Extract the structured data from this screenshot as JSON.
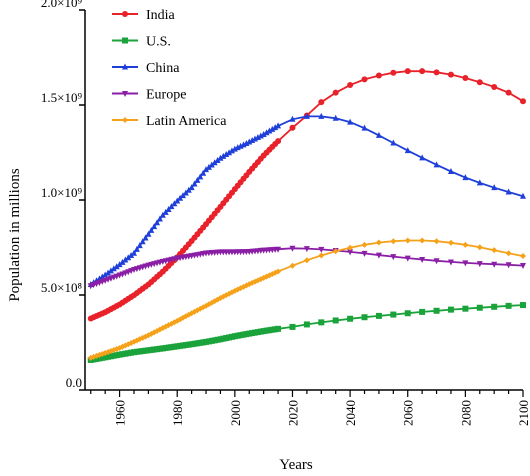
{
  "chart_data": {
    "type": "line",
    "title": "",
    "xlabel": "Years",
    "ylabel": "Population in millions",
    "xlim": [
      1948,
      2100
    ],
    "ylim": [
      0,
      2000000000
    ],
    "x_ticks": [
      1960,
      1980,
      2000,
      2020,
      2040,
      2060,
      2080,
      2100
    ],
    "x_tick_labels": [
      "1960",
      "1980",
      "2000",
      "2020",
      "2040",
      "2060",
      "2080",
      "2100"
    ],
    "y_ticks": [
      0,
      500000000,
      1000000000,
      1500000000,
      2000000000
    ],
    "y_tick_labels": [
      "0.0",
      "5.0×10⁸",
      "1.0×10⁹",
      "1.5×10⁹",
      "2.0×10⁹"
    ],
    "grid": false,
    "legend_position": "top-left",
    "series": [
      {
        "name": "India",
        "color": "#e8212a",
        "marker": "circle",
        "points": [
          [
            1950,
            376000000
          ],
          [
            1955,
            409000000
          ],
          [
            1960,
            450000000
          ],
          [
            1965,
            499000000
          ],
          [
            1970,
            555000000
          ],
          [
            1975,
            623000000
          ],
          [
            1980,
            699000000
          ],
          [
            1985,
            784000000
          ],
          [
            1990,
            873000000
          ],
          [
            1995,
            964000000
          ],
          [
            2000,
            1057000000
          ],
          [
            2005,
            1148000000
          ],
          [
            2010,
            1234000000
          ],
          [
            2015,
            1310000000
          ],
          [
            2020,
            1380000000
          ],
          [
            2025,
            1445000000
          ],
          [
            2030,
            1515000000
          ],
          [
            2035,
            1565000000
          ],
          [
            2040,
            1605000000
          ],
          [
            2045,
            1635000000
          ],
          [
            2050,
            1655000000
          ],
          [
            2055,
            1670000000
          ],
          [
            2060,
            1678000000
          ],
          [
            2065,
            1678000000
          ],
          [
            2070,
            1672000000
          ],
          [
            2075,
            1660000000
          ],
          [
            2080,
            1642000000
          ],
          [
            2085,
            1620000000
          ],
          [
            2090,
            1595000000
          ],
          [
            2095,
            1565000000
          ],
          [
            2100,
            1520000000
          ]
        ]
      },
      {
        "name": "U.S.",
        "color": "#1aa33a",
        "marker": "square",
        "points": [
          [
            1950,
            158000000
          ],
          [
            1955,
            172000000
          ],
          [
            1960,
            186000000
          ],
          [
            1965,
            199000000
          ],
          [
            1970,
            209000000
          ],
          [
            1975,
            219000000
          ],
          [
            1980,
            230000000
          ],
          [
            1985,
            241000000
          ],
          [
            1990,
            253000000
          ],
          [
            1995,
            267000000
          ],
          [
            2000,
            283000000
          ],
          [
            2005,
            297000000
          ],
          [
            2010,
            310000000
          ],
          [
            2015,
            322000000
          ],
          [
            2020,
            332000000
          ],
          [
            2025,
            345000000
          ],
          [
            2030,
            356000000
          ],
          [
            2035,
            366000000
          ],
          [
            2040,
            375000000
          ],
          [
            2045,
            383000000
          ],
          [
            2050,
            390000000
          ],
          [
            2055,
            397000000
          ],
          [
            2060,
            404000000
          ],
          [
            2065,
            411000000
          ],
          [
            2070,
            417000000
          ],
          [
            2075,
            423000000
          ],
          [
            2080,
            428000000
          ],
          [
            2085,
            433000000
          ],
          [
            2090,
            438000000
          ],
          [
            2095,
            443000000
          ],
          [
            2100,
            447000000
          ]
        ]
      },
      {
        "name": "China",
        "color": "#1f3fd9",
        "marker": "triangle",
        "points": [
          [
            1950,
            555000000
          ],
          [
            1955,
            605000000
          ],
          [
            1960,
            660000000
          ],
          [
            1965,
            720000000
          ],
          [
            1970,
            820000000
          ],
          [
            1975,
            920000000
          ],
          [
            1980,
            995000000
          ],
          [
            1985,
            1065000000
          ],
          [
            1990,
            1160000000
          ],
          [
            1995,
            1220000000
          ],
          [
            2000,
            1268000000
          ],
          [
            2005,
            1305000000
          ],
          [
            2010,
            1345000000
          ],
          [
            2015,
            1390000000
          ],
          [
            2020,
            1425000000
          ],
          [
            2025,
            1440000000
          ],
          [
            2030,
            1440000000
          ],
          [
            2035,
            1430000000
          ],
          [
            2040,
            1410000000
          ],
          [
            2045,
            1378000000
          ],
          [
            2050,
            1340000000
          ],
          [
            2055,
            1300000000
          ],
          [
            2060,
            1260000000
          ],
          [
            2065,
            1222000000
          ],
          [
            2070,
            1185000000
          ],
          [
            2075,
            1150000000
          ],
          [
            2080,
            1118000000
          ],
          [
            2085,
            1090000000
          ],
          [
            2090,
            1065000000
          ],
          [
            2095,
            1042000000
          ],
          [
            2100,
            1020000000
          ]
        ]
      },
      {
        "name": "Europe",
        "color": "#8a1fa6",
        "marker": "inverted-triangle",
        "points": [
          [
            1950,
            549000000
          ],
          [
            1955,
            577000000
          ],
          [
            1960,
            605000000
          ],
          [
            1965,
            634000000
          ],
          [
            1970,
            657000000
          ],
          [
            1975,
            677000000
          ],
          [
            1980,
            694000000
          ],
          [
            1985,
            707000000
          ],
          [
            1990,
            721000000
          ],
          [
            1995,
            727000000
          ],
          [
            2000,
            727000000
          ],
          [
            2005,
            729000000
          ],
          [
            2010,
            736000000
          ],
          [
            2015,
            741000000
          ],
          [
            2020,
            746000000
          ],
          [
            2025,
            744000000
          ],
          [
            2030,
            740000000
          ],
          [
            2035,
            734000000
          ],
          [
            2040,
            727000000
          ],
          [
            2045,
            719000000
          ],
          [
            2050,
            710000000
          ],
          [
            2055,
            702000000
          ],
          [
            2060,
            694000000
          ],
          [
            2065,
            687000000
          ],
          [
            2070,
            680000000
          ],
          [
            2075,
            674000000
          ],
          [
            2080,
            669000000
          ],
          [
            2085,
            665000000
          ],
          [
            2090,
            662000000
          ],
          [
            2095,
            659000000
          ],
          [
            2100,
            655000000
          ]
        ]
      },
      {
        "name": "Latin America",
        "color": "#f5a21a",
        "marker": "diamond",
        "points": [
          [
            1950,
            169000000
          ],
          [
            1955,
            195000000
          ],
          [
            1960,
            221000000
          ],
          [
            1965,
            254000000
          ],
          [
            1970,
            288000000
          ],
          [
            1975,
            326000000
          ],
          [
            1980,
            364000000
          ],
          [
            1985,
            404000000
          ],
          [
            1990,
            443000000
          ],
          [
            1995,
            484000000
          ],
          [
            2000,
            522000000
          ],
          [
            2005,
            557000000
          ],
          [
            2010,
            590000000
          ],
          [
            2015,
            624000000
          ],
          [
            2020,
            654000000
          ],
          [
            2025,
            683000000
          ],
          [
            2030,
            708000000
          ],
          [
            2035,
            730000000
          ],
          [
            2040,
            749000000
          ],
          [
            2045,
            764000000
          ],
          [
            2050,
            776000000
          ],
          [
            2055,
            783000000
          ],
          [
            2060,
            787000000
          ],
          [
            2065,
            787000000
          ],
          [
            2070,
            783000000
          ],
          [
            2075,
            775000000
          ],
          [
            2080,
            764000000
          ],
          [
            2085,
            751000000
          ],
          [
            2090,
            736000000
          ],
          [
            2095,
            720000000
          ],
          [
            2100,
            705000000
          ]
        ]
      }
    ]
  }
}
